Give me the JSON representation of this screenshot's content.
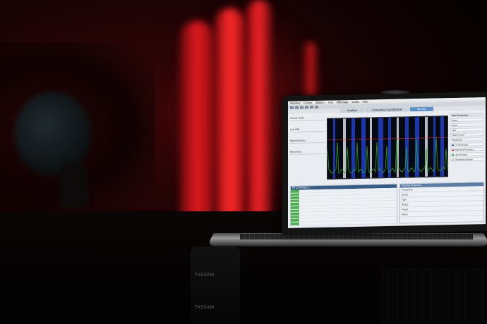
{
  "laptop_app": {
    "menu_items": [
      "Window",
      "Fichier",
      "Édition",
      "Vue",
      "Affichage",
      "Outils",
      "Aide"
    ],
    "tabs": [
      {
        "label": "Analyse",
        "active": false
      },
      {
        "label": "Frequency Coordination",
        "active": false
      },
      {
        "label": "Monitor",
        "active": true
      }
    ],
    "left_panel": [
      "Sound Fonts",
      "Live Plot",
      "Manual Inputs",
      "Receivers"
    ],
    "right_panel": {
      "title": "Plot Properties",
      "rows": [
        "Name",
        "Color",
        "Line",
        "Time Period",
        "Threshold"
      ],
      "legend": [
        {
          "label": "TV Channels",
          "color": "#1f4fd6"
        },
        {
          "label": "Intermod Products",
          "color": "#d62f2f"
        },
        {
          "label": "Live Ranges",
          "color": "#2ca02c"
        },
        {
          "label": "Threshold Region",
          "color": "#e0e0e0"
        }
      ]
    },
    "lower_left": {
      "header": "RF CHANNELS",
      "row_count": 11
    },
    "lower_right": {
      "header": "Channel Properties",
      "rows": [
        "Frequency",
        "Group",
        "Type",
        "Status",
        "Power",
        "Notes"
      ]
    }
  },
  "background": {
    "device_label": "TASCAM",
    "curtain_color": "#e01a1f"
  }
}
